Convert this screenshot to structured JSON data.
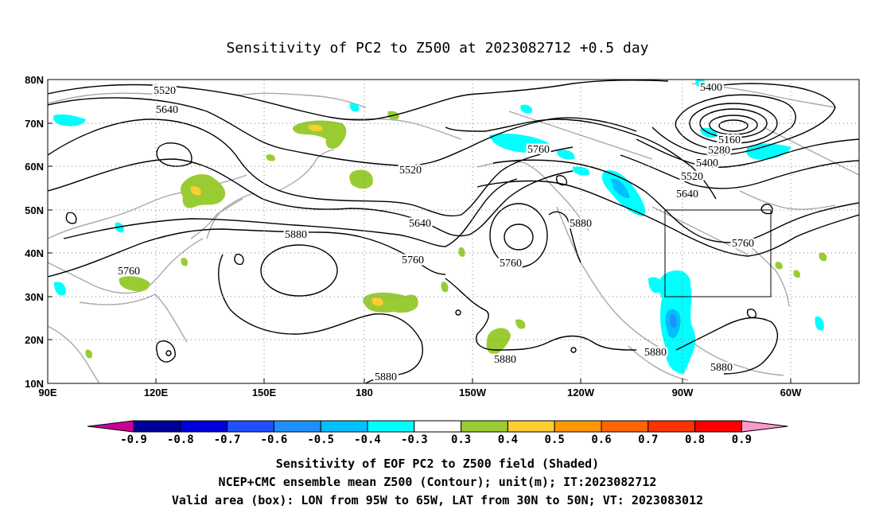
{
  "title": "Sensitivity of PC2 to Z500 at 2023082712 +0.5 day",
  "map": {
    "lat_labels": [
      "80N",
      "70N",
      "60N",
      "50N",
      "40N",
      "30N",
      "20N",
      "10N"
    ],
    "lon_labels": [
      "90E",
      "120E",
      "150E",
      "180",
      "150W",
      "120W",
      "90W",
      "60W"
    ],
    "contour_labels": [
      "5520",
      "5640",
      "5760",
      "5520",
      "5640",
      "5760",
      "5880",
      "5760",
      "5880",
      "5640",
      "5760",
      "5400",
      "5160",
      "5280",
      "5400",
      "5520",
      "5640",
      "5760",
      "5880",
      "5880",
      "5880",
      "5880"
    ],
    "box": {
      "lon_from": "95W",
      "lon_to": "65W",
      "lat_from": "30N",
      "lat_to": "50N"
    }
  },
  "colorbar": {
    "labels": [
      "-0.9",
      "-0.8",
      "-0.7",
      "-0.6",
      "-0.5",
      "-0.4",
      "-0.3",
      "0.3",
      "0.4",
      "0.5",
      "0.6",
      "0.7",
      "0.8",
      "0.9"
    ],
    "colors": [
      "#000099",
      "#0000dd",
      "#1f4fff",
      "#1e8fff",
      "#00bfff",
      "#00ffff",
      "#ffffff",
      "#99cc33",
      "#ffcc33",
      "#ff9900",
      "#ff6600",
      "#ff3300",
      "#ff0000"
    ],
    "low_color": "#cc0099",
    "high_color": "#ff99cc"
  },
  "captions": [
    "Sensitivity of EOF PC2 to Z500 field (Shaded)",
    "NCEP+CMC ensemble mean Z500 (Contour); unit(m); IT:2023082712",
    "Valid area (box): LON from 95W to 65W, LAT from 30N to 50N; VT: 2023083012"
  ]
}
